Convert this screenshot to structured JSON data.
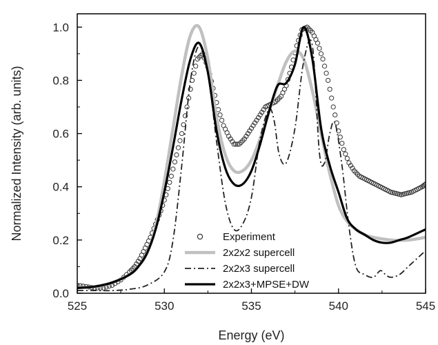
{
  "chart_data": {
    "type": "line",
    "xlabel": "Energy (eV)",
    "ylabel": "Normalized Intensity (arb. units)",
    "xlim": [
      525,
      545
    ],
    "ylim": [
      0,
      1.05
    ],
    "xticks": [
      525,
      530,
      535,
      540,
      545
    ],
    "xtick_labels": [
      "525",
      "530",
      "535",
      "540",
      "545"
    ],
    "yticks": [
      0.0,
      0.2,
      0.4,
      0.6,
      0.8,
      1.0
    ],
    "ytick_labels": [
      "0.0",
      "0.2",
      "0.4",
      "0.6",
      "0.8",
      "1.0"
    ],
    "grid": false,
    "legend_position": "bottom-center",
    "series": [
      {
        "name": "Experiment",
        "style": "open-circles",
        "color": "#333333",
        "x": [
          525.0,
          525.5,
          526.0,
          526.5,
          527.0,
          527.5,
          528.0,
          528.3,
          528.6,
          528.9,
          529.2,
          529.5,
          529.8,
          530.1,
          530.4,
          530.7,
          531.0,
          531.3,
          531.6,
          531.9,
          532.2,
          532.5,
          532.8,
          533.1,
          533.4,
          533.7,
          534.0,
          534.3,
          534.6,
          534.9,
          535.2,
          535.5,
          535.8,
          536.1,
          536.4,
          536.7,
          537.0,
          537.3,
          537.6,
          537.9,
          538.2,
          538.5,
          538.8,
          539.1,
          539.4,
          539.7,
          540.0,
          540.3,
          540.6,
          540.9,
          541.2,
          541.5,
          541.8,
          542.1,
          542.4,
          542.7,
          543.0,
          543.3,
          543.6,
          543.9,
          544.2,
          544.5,
          544.8,
          545.0
        ],
        "y": [
          0.03,
          0.025,
          0.02,
          0.02,
          0.03,
          0.05,
          0.08,
          0.1,
          0.13,
          0.17,
          0.21,
          0.26,
          0.31,
          0.37,
          0.44,
          0.52,
          0.6,
          0.7,
          0.8,
          0.88,
          0.9,
          0.85,
          0.77,
          0.69,
          0.63,
          0.59,
          0.56,
          0.56,
          0.58,
          0.61,
          0.64,
          0.67,
          0.7,
          0.71,
          0.72,
          0.74,
          0.78,
          0.85,
          0.93,
          0.99,
          1.0,
          0.98,
          0.94,
          0.88,
          0.8,
          0.7,
          0.61,
          0.54,
          0.49,
          0.46,
          0.44,
          0.43,
          0.42,
          0.41,
          0.4,
          0.39,
          0.38,
          0.375,
          0.37,
          0.375,
          0.38,
          0.39,
          0.4,
          0.41
        ]
      },
      {
        "name": "2x2x2 supercell",
        "style": "solid-thick-gray",
        "color": "#c0c0c0",
        "x": [
          525.0,
          526.0,
          527.0,
          528.0,
          528.5,
          529.0,
          529.5,
          530.0,
          530.5,
          531.0,
          531.5,
          532.0,
          532.5,
          533.0,
          533.5,
          534.0,
          534.5,
          535.0,
          535.5,
          536.0,
          536.5,
          537.0,
          537.5,
          538.0,
          538.5,
          539.0,
          539.5,
          540.0,
          540.5,
          541.0,
          541.5,
          542.0,
          543.0,
          544.0,
          545.0
        ],
        "y": [
          0.02,
          0.025,
          0.04,
          0.07,
          0.1,
          0.15,
          0.25,
          0.42,
          0.62,
          0.82,
          0.97,
          1.0,
          0.88,
          0.66,
          0.52,
          0.46,
          0.46,
          0.5,
          0.58,
          0.68,
          0.78,
          0.87,
          0.91,
          0.88,
          0.76,
          0.6,
          0.45,
          0.33,
          0.27,
          0.24,
          0.22,
          0.21,
          0.2,
          0.2,
          0.21
        ]
      },
      {
        "name": "2x2x3 supercell",
        "style": "dash-dot",
        "color": "#222222",
        "x": [
          525.0,
          526.0,
          527.0,
          528.0,
          529.0,
          530.0,
          530.5,
          531.0,
          531.5,
          532.0,
          532.5,
          533.0,
          533.5,
          534.0,
          534.5,
          535.0,
          535.5,
          536.0,
          536.3,
          536.6,
          537.0,
          537.5,
          538.0,
          538.5,
          538.9,
          539.2,
          539.5,
          539.8,
          540.2,
          540.6,
          541.0,
          541.5,
          542.0,
          542.4,
          542.7,
          543.0,
          543.5,
          544.0,
          544.5,
          545.0
        ],
        "y": [
          0.01,
          0.01,
          0.01,
          0.015,
          0.03,
          0.08,
          0.2,
          0.48,
          0.8,
          0.93,
          0.83,
          0.57,
          0.34,
          0.24,
          0.26,
          0.36,
          0.58,
          0.69,
          0.65,
          0.52,
          0.49,
          0.62,
          0.87,
          0.93,
          0.53,
          0.49,
          0.6,
          0.64,
          0.48,
          0.25,
          0.1,
          0.07,
          0.06,
          0.085,
          0.07,
          0.06,
          0.07,
          0.1,
          0.13,
          0.16
        ]
      },
      {
        "name": "2x2x3+MPSE+DW",
        "style": "solid-thick-black",
        "color": "#000000",
        "x": [
          525.0,
          526.0,
          527.0,
          528.0,
          528.5,
          529.0,
          529.5,
          530.0,
          530.5,
          531.0,
          531.5,
          532.0,
          532.5,
          533.0,
          533.5,
          534.0,
          534.5,
          535.0,
          535.5,
          536.0,
          536.5,
          537.0,
          537.5,
          538.0,
          538.5,
          539.0,
          539.5,
          540.0,
          540.5,
          541.0,
          541.5,
          542.0,
          542.5,
          543.0,
          543.5,
          544.0,
          545.0
        ],
        "y": [
          0.02,
          0.025,
          0.04,
          0.07,
          0.1,
          0.15,
          0.24,
          0.38,
          0.55,
          0.73,
          0.88,
          0.94,
          0.83,
          0.61,
          0.47,
          0.41,
          0.41,
          0.46,
          0.56,
          0.68,
          0.78,
          0.79,
          0.86,
          1.0,
          0.88,
          0.62,
          0.48,
          0.38,
          0.28,
          0.24,
          0.22,
          0.2,
          0.19,
          0.19,
          0.2,
          0.21,
          0.24
        ]
      }
    ]
  }
}
